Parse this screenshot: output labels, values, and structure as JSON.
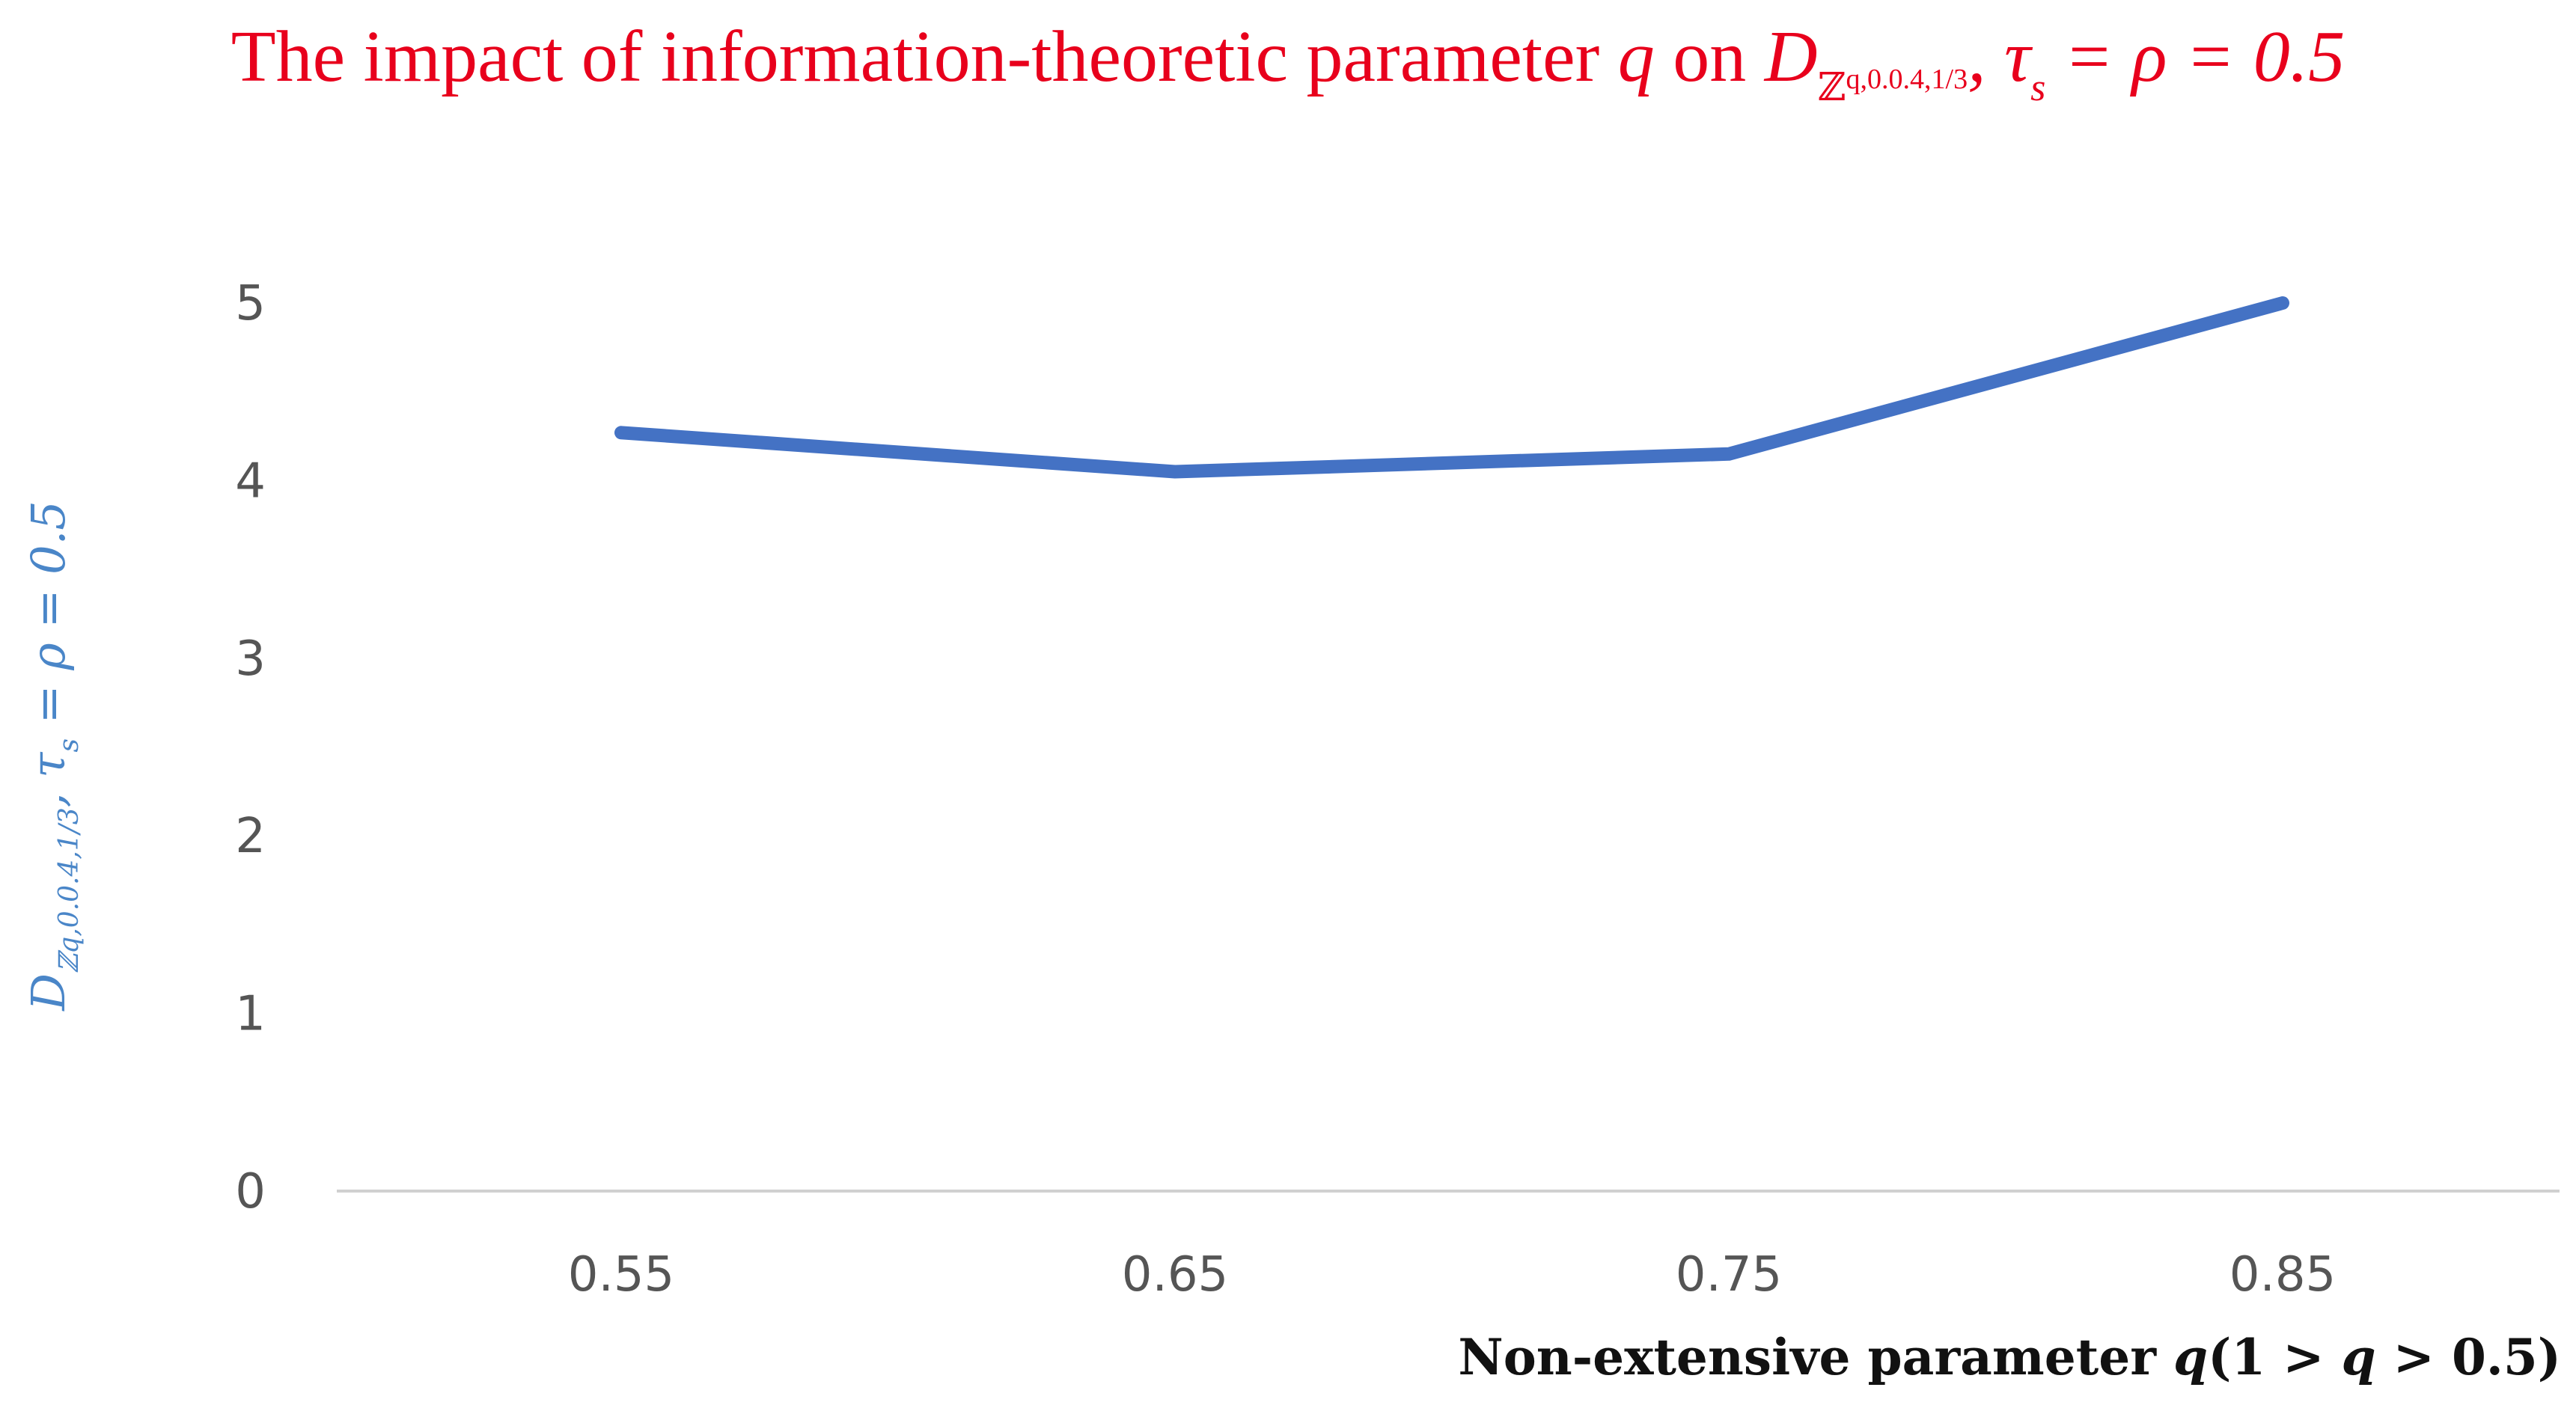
{
  "chart_data": {
    "type": "line",
    "title": {
      "pre": "The impact of information-theoretic parameter ",
      "var": "q",
      "mid": " on ",
      "sym": "D",
      "sub": "ℤ",
      "subsub": "q,0.0.4,1/3",
      "post": ", τ",
      "post_sub": "s",
      "post_tail": " = ρ = 0.5"
    },
    "ylabel": {
      "sym": "D",
      "sub": "ℤq,0.0.4,1/3",
      "post": ", τ",
      "post_sub": "s",
      "post_tail": " = ρ = 0.5"
    },
    "xlabel": {
      "pre": "Non-extensive parameter ",
      "var": "q",
      "post": "(1 > ",
      "var2": "q",
      "post2": " > 0.5)"
    },
    "categories": [
      "0.55",
      "0.65",
      "0.75",
      "0.85"
    ],
    "series": [
      {
        "values": [
          4.27,
          4.05,
          4.15,
          5.0
        ]
      }
    ],
    "ylim": [
      0,
      5
    ],
    "yticks": [
      "0",
      "1",
      "2",
      "3",
      "4",
      "5"
    ],
    "grid": false,
    "colors": {
      "line": "#4472c4",
      "axis": "#d0d0d0",
      "title": "#e8001c",
      "ylabel": "#4a86c8"
    }
  }
}
